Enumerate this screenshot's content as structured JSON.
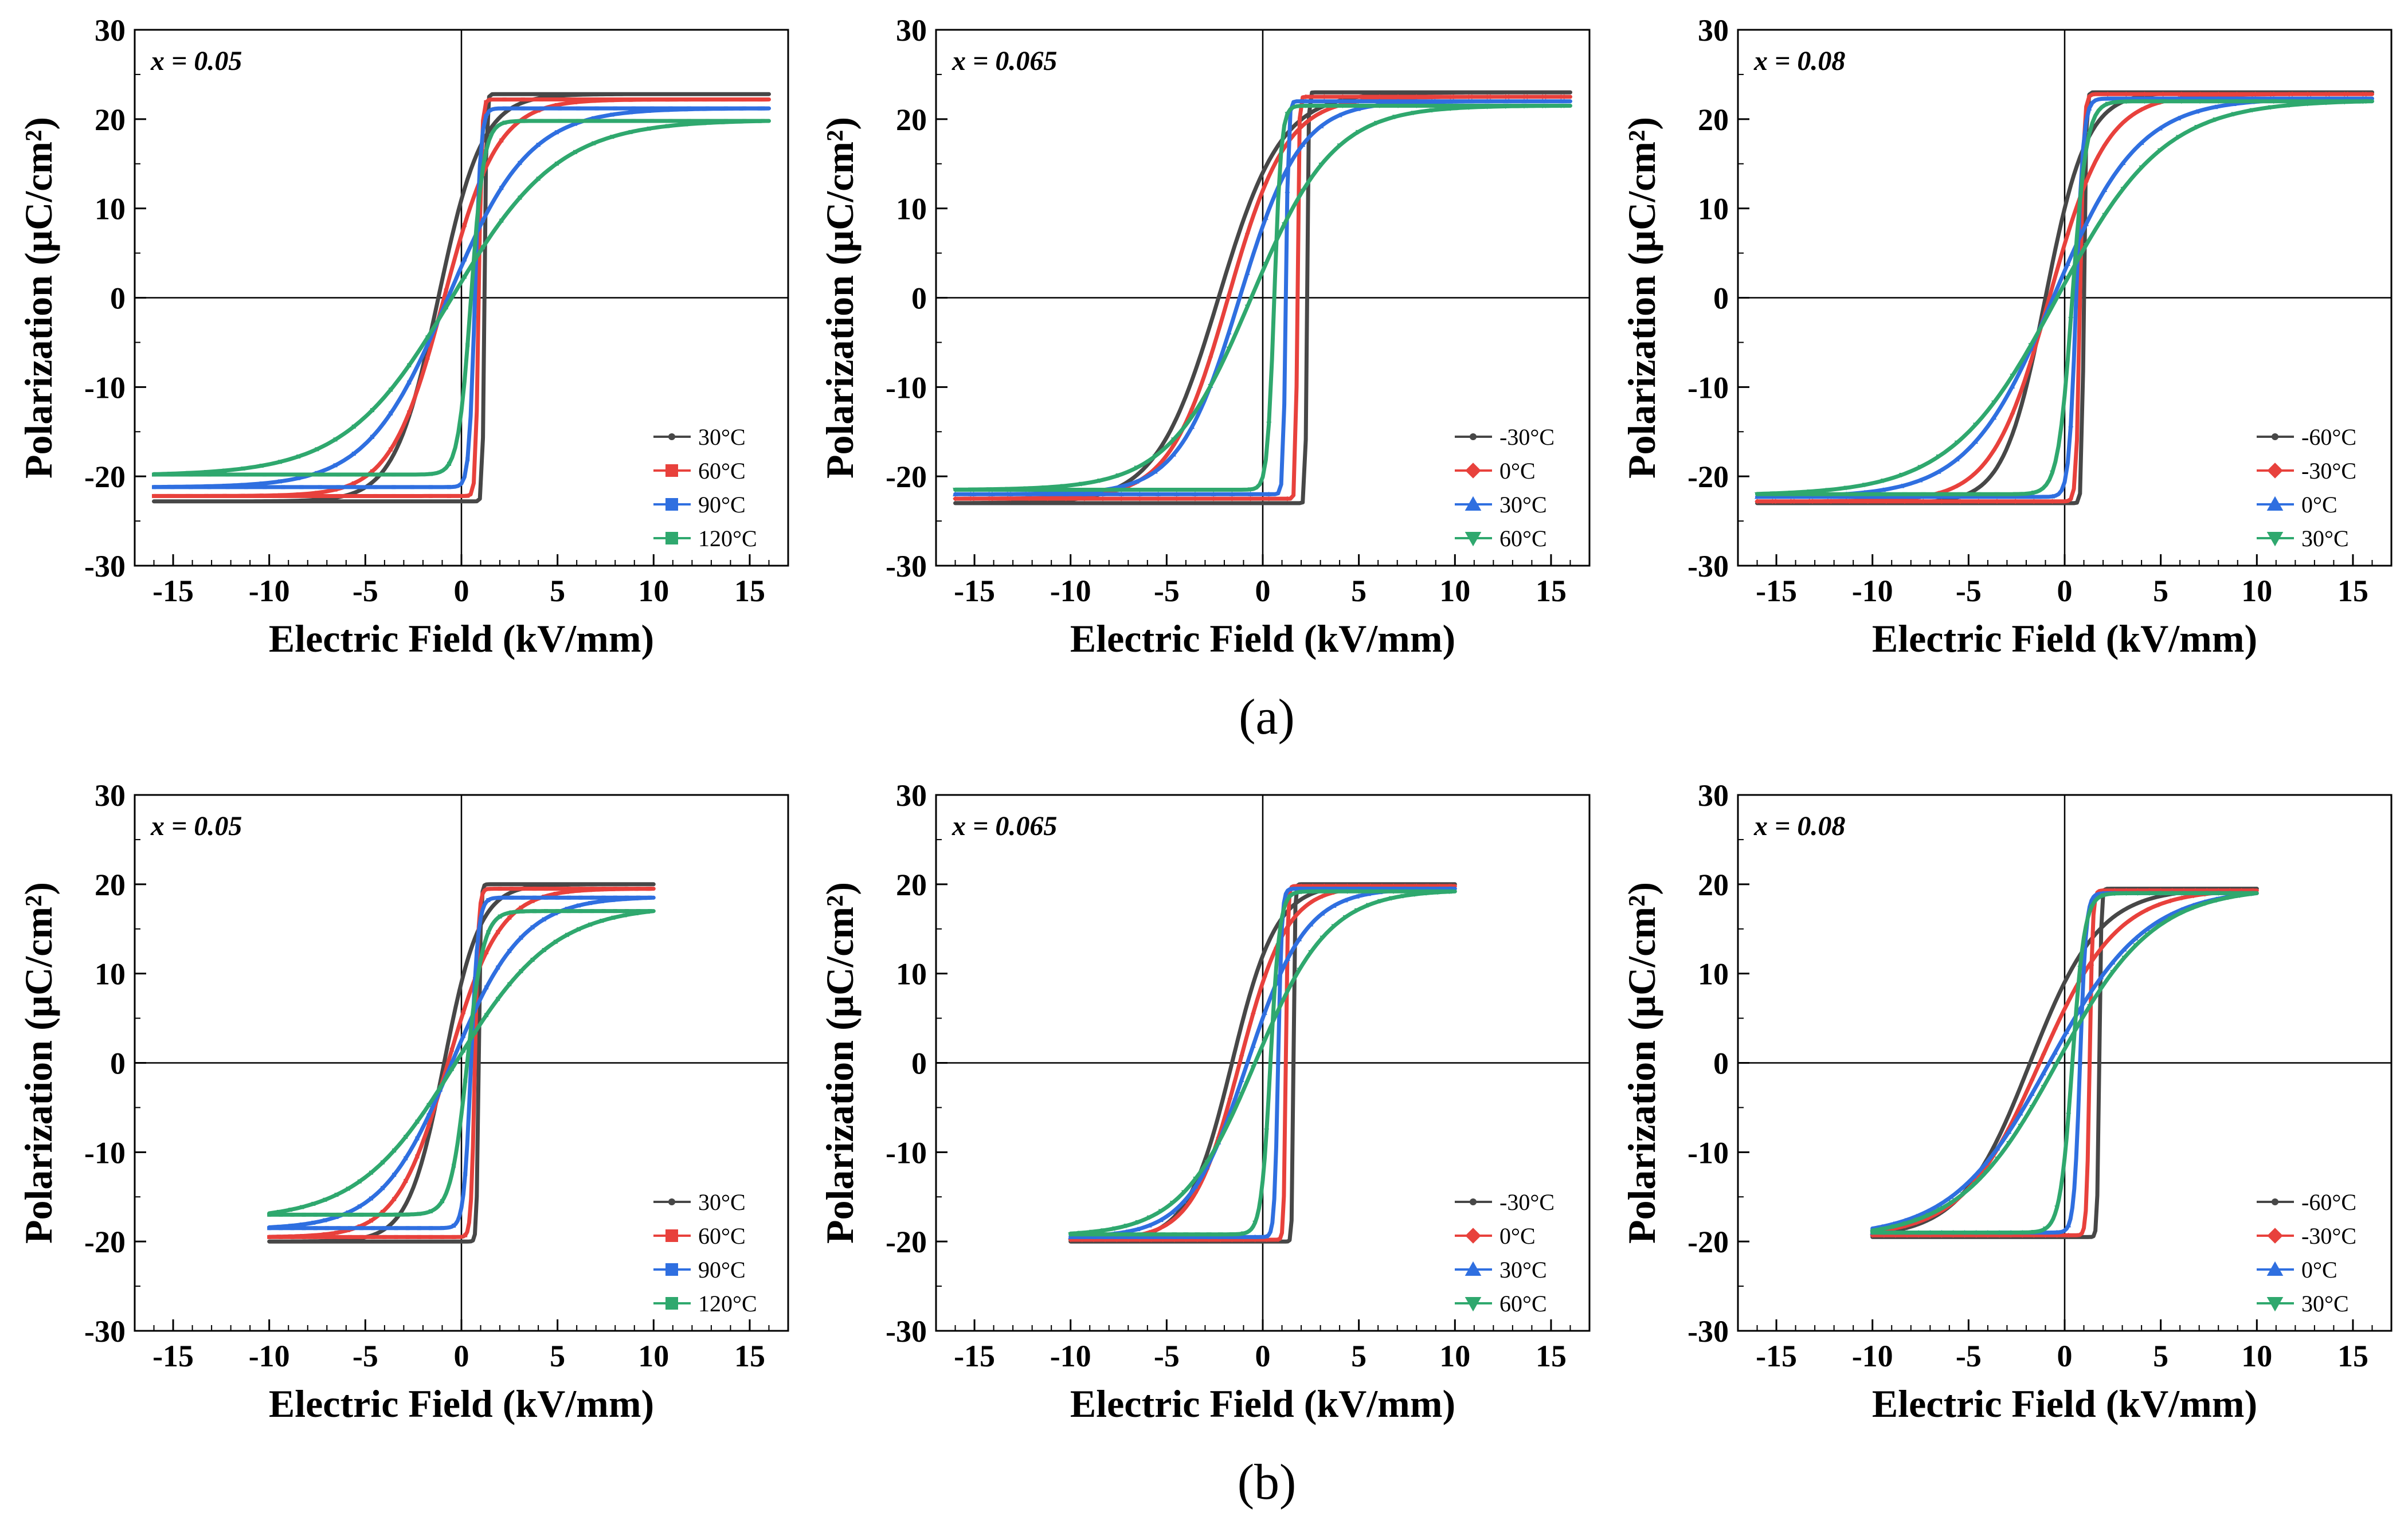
{
  "figure": {
    "sub_captions": [
      "(a)",
      "(b)"
    ]
  },
  "colors": {
    "series": [
      "#474747",
      "#e8413c",
      "#2f6fe0",
      "#2fa86e"
    ]
  },
  "chart_data": [
    {
      "type": "line",
      "row": "a",
      "panel_label": "x = 0.05",
      "xlabel": "Electric Field (kV/mm)",
      "ylabel": "Polarization (μC/cm²)",
      "xlim": [
        -17,
        17
      ],
      "ylim": [
        -30,
        30
      ],
      "xticks": [
        -15,
        -10,
        -5,
        0,
        5,
        10,
        15
      ],
      "yticks": [
        -30,
        -20,
        -10,
        0,
        10,
        20,
        30
      ],
      "legend_position": "lower-right",
      "series": [
        {
          "name": "30°C",
          "marker": "dot",
          "Emax": 16,
          "Pmax": 22.8,
          "Pr": 11.0,
          "Ec": 1.2
        },
        {
          "name": "60°C",
          "marker": "square",
          "Emax": 16,
          "Pmax": 22.2,
          "Pr": 7.0,
          "Ec": 0.9
        },
        {
          "name": "90°C",
          "marker": "square",
          "Emax": 16,
          "Pmax": 21.2,
          "Pr": 3.5,
          "Ec": 0.7
        },
        {
          "name": "120°C",
          "marker": "square",
          "Emax": 16,
          "Pmax": 19.8,
          "Pr": 1.5,
          "Ec": 0.5
        }
      ]
    },
    {
      "type": "line",
      "row": "a",
      "panel_label": "x = 0.065",
      "xlabel": "Electric Field (kV/mm)",
      "ylabel": "Polarization (μC/cm²)",
      "xlim": [
        -17,
        17
      ],
      "ylim": [
        -30,
        30
      ],
      "xticks": [
        -15,
        -10,
        -5,
        0,
        5,
        10,
        15
      ],
      "yticks": [
        -30,
        -20,
        -10,
        0,
        10,
        20,
        30
      ],
      "legend_position": "lower-right",
      "series": [
        {
          "name": "-30°C",
          "marker": "dot",
          "Emax": 16,
          "Pmax": 23.0,
          "Pr": 14.0,
          "Ec": 2.3
        },
        {
          "name": "0°C",
          "marker": "diamond",
          "Emax": 16,
          "Pmax": 22.5,
          "Pr": 12.0,
          "Ec": 1.8
        },
        {
          "name": "30°C",
          "marker": "triangle-up",
          "Emax": 16,
          "Pmax": 22.0,
          "Pr": 8.0,
          "Ec": 1.2
        },
        {
          "name": "60°C",
          "marker": "triangle-down",
          "Emax": 16,
          "Pmax": 21.5,
          "Pr": 3.0,
          "Ec": 0.6
        }
      ]
    },
    {
      "type": "line",
      "row": "a",
      "panel_label": "x = 0.08",
      "xlabel": "Electric Field (kV/mm)",
      "ylabel": "Polarization (μC/cm²)",
      "xlim": [
        -17,
        17
      ],
      "ylim": [
        -30,
        30
      ],
      "xticks": [
        -15,
        -10,
        -5,
        0,
        5,
        10,
        15
      ],
      "yticks": [
        -30,
        -20,
        -10,
        0,
        10,
        20,
        30
      ],
      "legend_position": "lower-right",
      "series": [
        {
          "name": "-60°C",
          "marker": "dot",
          "Emax": 16,
          "Pmax": 23.0,
          "Pr": 10.0,
          "Ec": 1.0
        },
        {
          "name": "-30°C",
          "marker": "diamond",
          "Emax": 16,
          "Pmax": 22.8,
          "Pr": 6.0,
          "Ec": 0.8
        },
        {
          "name": "0°C",
          "marker": "triangle-up",
          "Emax": 16,
          "Pmax": 22.3,
          "Pr": 3.0,
          "Ec": 0.6
        },
        {
          "name": "30°C",
          "marker": "triangle-down",
          "Emax": 16,
          "Pmax": 22.0,
          "Pr": 1.5,
          "Ec": 0.4
        }
      ]
    },
    {
      "type": "line",
      "row": "b",
      "panel_label": "x = 0.05",
      "xlabel": "Electric Field (kV/mm)",
      "ylabel": "Polarization (μC/cm²)",
      "xlim": [
        -17,
        17
      ],
      "ylim": [
        -30,
        30
      ],
      "xticks": [
        -15,
        -10,
        -5,
        0,
        5,
        10,
        15
      ],
      "yticks": [
        -30,
        -20,
        -10,
        0,
        10,
        20,
        30
      ],
      "legend_position": "lower-right",
      "series": [
        {
          "name": "30°C",
          "marker": "dot",
          "Emax": 10,
          "Pmax": 20.0,
          "Pr": 9.0,
          "Ec": 0.9
        },
        {
          "name": "60°C",
          "marker": "square",
          "Emax": 10,
          "Pmax": 19.5,
          "Pr": 5.0,
          "Ec": 0.7
        },
        {
          "name": "90°C",
          "marker": "square",
          "Emax": 10,
          "Pmax": 18.5,
          "Pr": 2.5,
          "Ec": 0.5
        },
        {
          "name": "120°C",
          "marker": "square",
          "Emax": 10,
          "Pmax": 17.0,
          "Pr": 1.0,
          "Ec": 0.3
        }
      ]
    },
    {
      "type": "line",
      "row": "b",
      "panel_label": "x = 0.065",
      "xlabel": "Electric Field (kV/mm)",
      "ylabel": "Polarization (μC/cm²)",
      "xlim": [
        -17,
        17
      ],
      "ylim": [
        -30,
        30
      ],
      "xticks": [
        -15,
        -10,
        -5,
        0,
        5,
        10,
        15
      ],
      "yticks": [
        -30,
        -20,
        -10,
        0,
        10,
        20,
        30
      ],
      "legend_position": "lower-right",
      "series": [
        {
          "name": "-30°C",
          "marker": "dot",
          "Emax": 10,
          "Pmax": 20.0,
          "Pr": 12.0,
          "Ec": 1.6
        },
        {
          "name": "0°C",
          "marker": "diamond",
          "Emax": 10,
          "Pmax": 19.8,
          "Pr": 9.0,
          "Ec": 1.2
        },
        {
          "name": "30°C",
          "marker": "triangle-up",
          "Emax": 10,
          "Pmax": 19.5,
          "Pr": 5.0,
          "Ec": 0.8
        },
        {
          "name": "60°C",
          "marker": "triangle-down",
          "Emax": 10,
          "Pmax": 19.2,
          "Pr": 2.0,
          "Ec": 0.4
        }
      ]
    },
    {
      "type": "line",
      "row": "b",
      "panel_label": "x = 0.08",
      "xlabel": "Electric Field (kV/mm)",
      "ylabel": "Polarization (μC/cm²)",
      "xlim": [
        -17,
        17
      ],
      "ylim": [
        -30,
        30
      ],
      "xticks": [
        -15,
        -10,
        -5,
        0,
        5,
        10,
        15
      ],
      "yticks": [
        -30,
        -20,
        -10,
        0,
        10,
        20,
        30
      ],
      "legend_position": "lower-right",
      "series": [
        {
          "name": "-60°C",
          "marker": "dot",
          "Emax": 10,
          "Pmax": 19.5,
          "Pr": 9.0,
          "Ec": 1.8
        },
        {
          "name": "-30°C",
          "marker": "diamond",
          "Emax": 10,
          "Pmax": 19.3,
          "Pr": 6.0,
          "Ec": 1.3
        },
        {
          "name": "0°C",
          "marker": "triangle-up",
          "Emax": 10,
          "Pmax": 19.0,
          "Pr": 3.0,
          "Ec": 0.8
        },
        {
          "name": "30°C",
          "marker": "triangle-down",
          "Emax": 10,
          "Pmax": 19.0,
          "Pr": 1.5,
          "Ec": 0.4
        }
      ]
    }
  ]
}
